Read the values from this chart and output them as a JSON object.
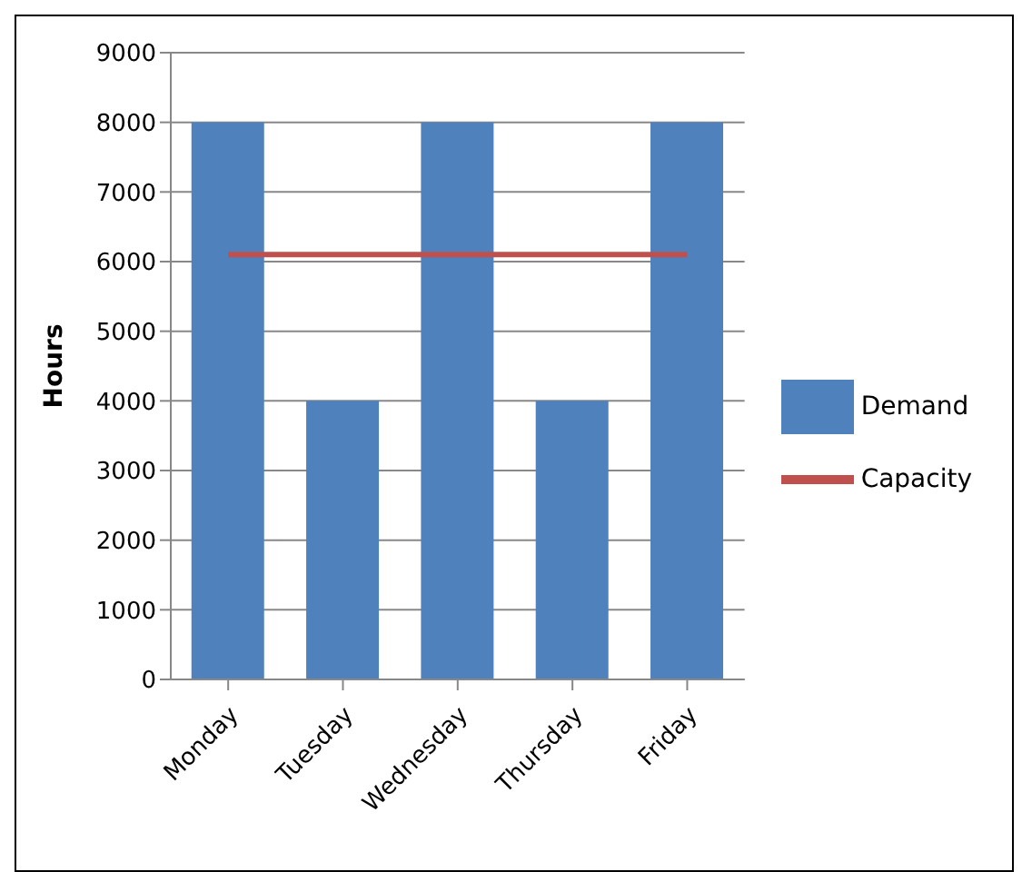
{
  "chart_data": {
    "type": "bar",
    "ylabel": "Hours",
    "categories": [
      "Monday",
      "Tuesday",
      "Wednesday",
      "Thursday",
      "Friday"
    ],
    "series": [
      {
        "name": "Demand",
        "color": "#4f81bd",
        "values": [
          8000,
          4000,
          8000,
          4000,
          8000
        ]
      },
      {
        "name": "Capacity",
        "type": "line",
        "color": "#c0504d",
        "values": [
          6100,
          6100,
          6100,
          6100,
          6100
        ]
      }
    ],
    "ylim": [
      0,
      9000
    ],
    "yticks": [
      0,
      1000,
      2000,
      3000,
      4000,
      5000,
      6000,
      7000,
      8000,
      9000
    ],
    "grid": "y",
    "legend": "right",
    "marker": "none"
  }
}
